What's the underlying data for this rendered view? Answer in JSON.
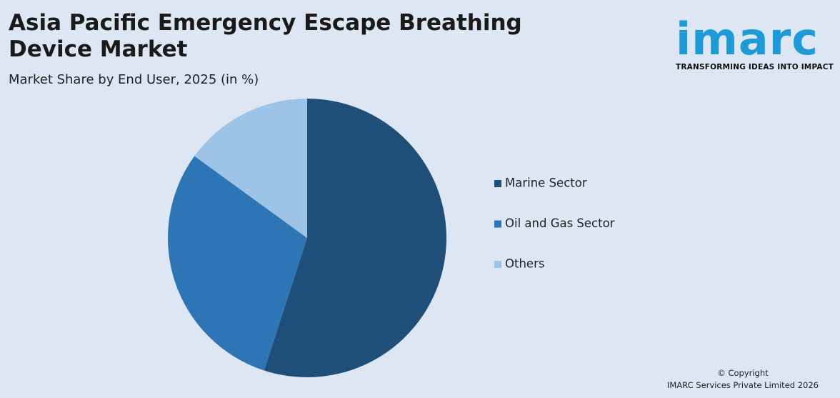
{
  "chart_data": {
    "type": "pie",
    "title": "Asia Pacific Emergency Escape Breathing Device Market",
    "subtitle": "Market Share by End User, 2025 (in %)",
    "categories": [
      "Marine Sector",
      "Oil and Gas Sector",
      "Others"
    ],
    "values": [
      55,
      30,
      15
    ],
    "colors": [
      "#1f4e79",
      "#2e75b6",
      "#9dc3e6"
    ],
    "legend": "right"
  },
  "logo": {
    "name": "imarc",
    "tagline": "TRANSFORMING IDEAS INTO IMPACT"
  },
  "footer": {
    "line1": "© Copyright",
    "line2": "IMARC Services Private Limited 2026"
  }
}
